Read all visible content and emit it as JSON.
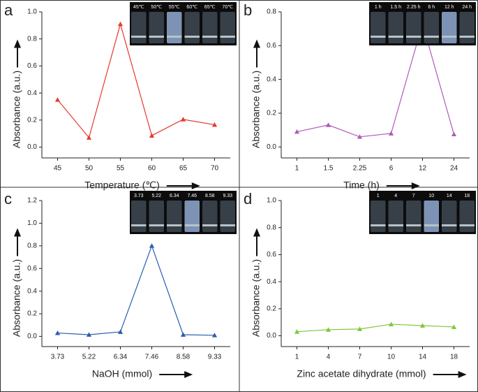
{
  "chart_data": [
    {
      "type": "line",
      "panel_label": "a",
      "x_label": "Temperature (℃)",
      "y_label": "Absorbance (a.u.)",
      "categories": [
        "45",
        "50",
        "55",
        "60",
        "65",
        "70"
      ],
      "values": [
        0.35,
        0.07,
        0.91,
        0.085,
        0.205,
        0.165
      ],
      "color": "#e8382c",
      "ylim": [
        -0.08,
        1.0
      ],
      "yticks": [
        {
          "value": 0,
          "label": "0.0"
        },
        0.2,
        0.4,
        0.6,
        0.8,
        {
          "value": 1,
          "label": "1.0"
        }
      ],
      "inset_labels": [
        "45℃",
        "50℃",
        "55℃",
        "60℃",
        "65℃",
        "70℃"
      ]
    },
    {
      "type": "line",
      "panel_label": "b",
      "x_label": "Time (h)",
      "y_label": "Absorbance (a.u.)",
      "categories": [
        "1",
        "1.5",
        "2.25",
        "6",
        "12",
        "24"
      ],
      "values": [
        0.09,
        0.13,
        0.06,
        0.08,
        0.73,
        0.075
      ],
      "color": "#b05ab8",
      "ylim": [
        -0.065,
        0.8
      ],
      "yticks": [
        {
          "value": 0,
          "label": "0.0"
        },
        0.2,
        0.4,
        0.6,
        0.8
      ],
      "inset_labels": [
        "1 h",
        "1.5 h",
        "2.25 h",
        "6 h",
        "12 h",
        "24 h"
      ]
    },
    {
      "type": "line",
      "panel_label": "c",
      "x_label": "NaOH (mmol)",
      "y_label": "Absorbance (a.u.)",
      "categories": [
        "3.73",
        "5.22",
        "6.34",
        "7.46",
        "8.58",
        "9.33"
      ],
      "values": [
        0.03,
        0.015,
        0.04,
        0.8,
        0.015,
        0.01
      ],
      "color": "#2a5db0",
      "ylim": [
        -0.09,
        1.2
      ],
      "yticks": [
        {
          "value": 0,
          "label": "0.0"
        },
        0.2,
        0.4,
        0.6,
        0.8,
        {
          "value": 1,
          "label": "1.0"
        },
        1.2
      ],
      "inset_labels": [
        "3.73",
        "5.22",
        "6.34",
        "7.46",
        "8.58",
        "9.33"
      ]
    },
    {
      "type": "line",
      "panel_label": "d",
      "x_label": "Zinc acetate dihydrate (mmol)",
      "y_label": "Absorbance (a.u.)",
      "categories": [
        "1",
        "4",
        "7",
        "10",
        "14",
        "18"
      ],
      "values": [
        0.03,
        0.045,
        0.05,
        0.085,
        0.075,
        0.065
      ],
      "color": "#7dc83a",
      "ylim": [
        -0.08,
        1.0
      ],
      "yticks": [
        {
          "value": 0,
          "label": "0.0"
        },
        0.2,
        0.4,
        0.6,
        0.8,
        {
          "value": 1,
          "label": "1.0"
        }
      ],
      "inset_labels": [
        "1",
        "4",
        "7",
        "10",
        "14",
        "18"
      ]
    }
  ]
}
